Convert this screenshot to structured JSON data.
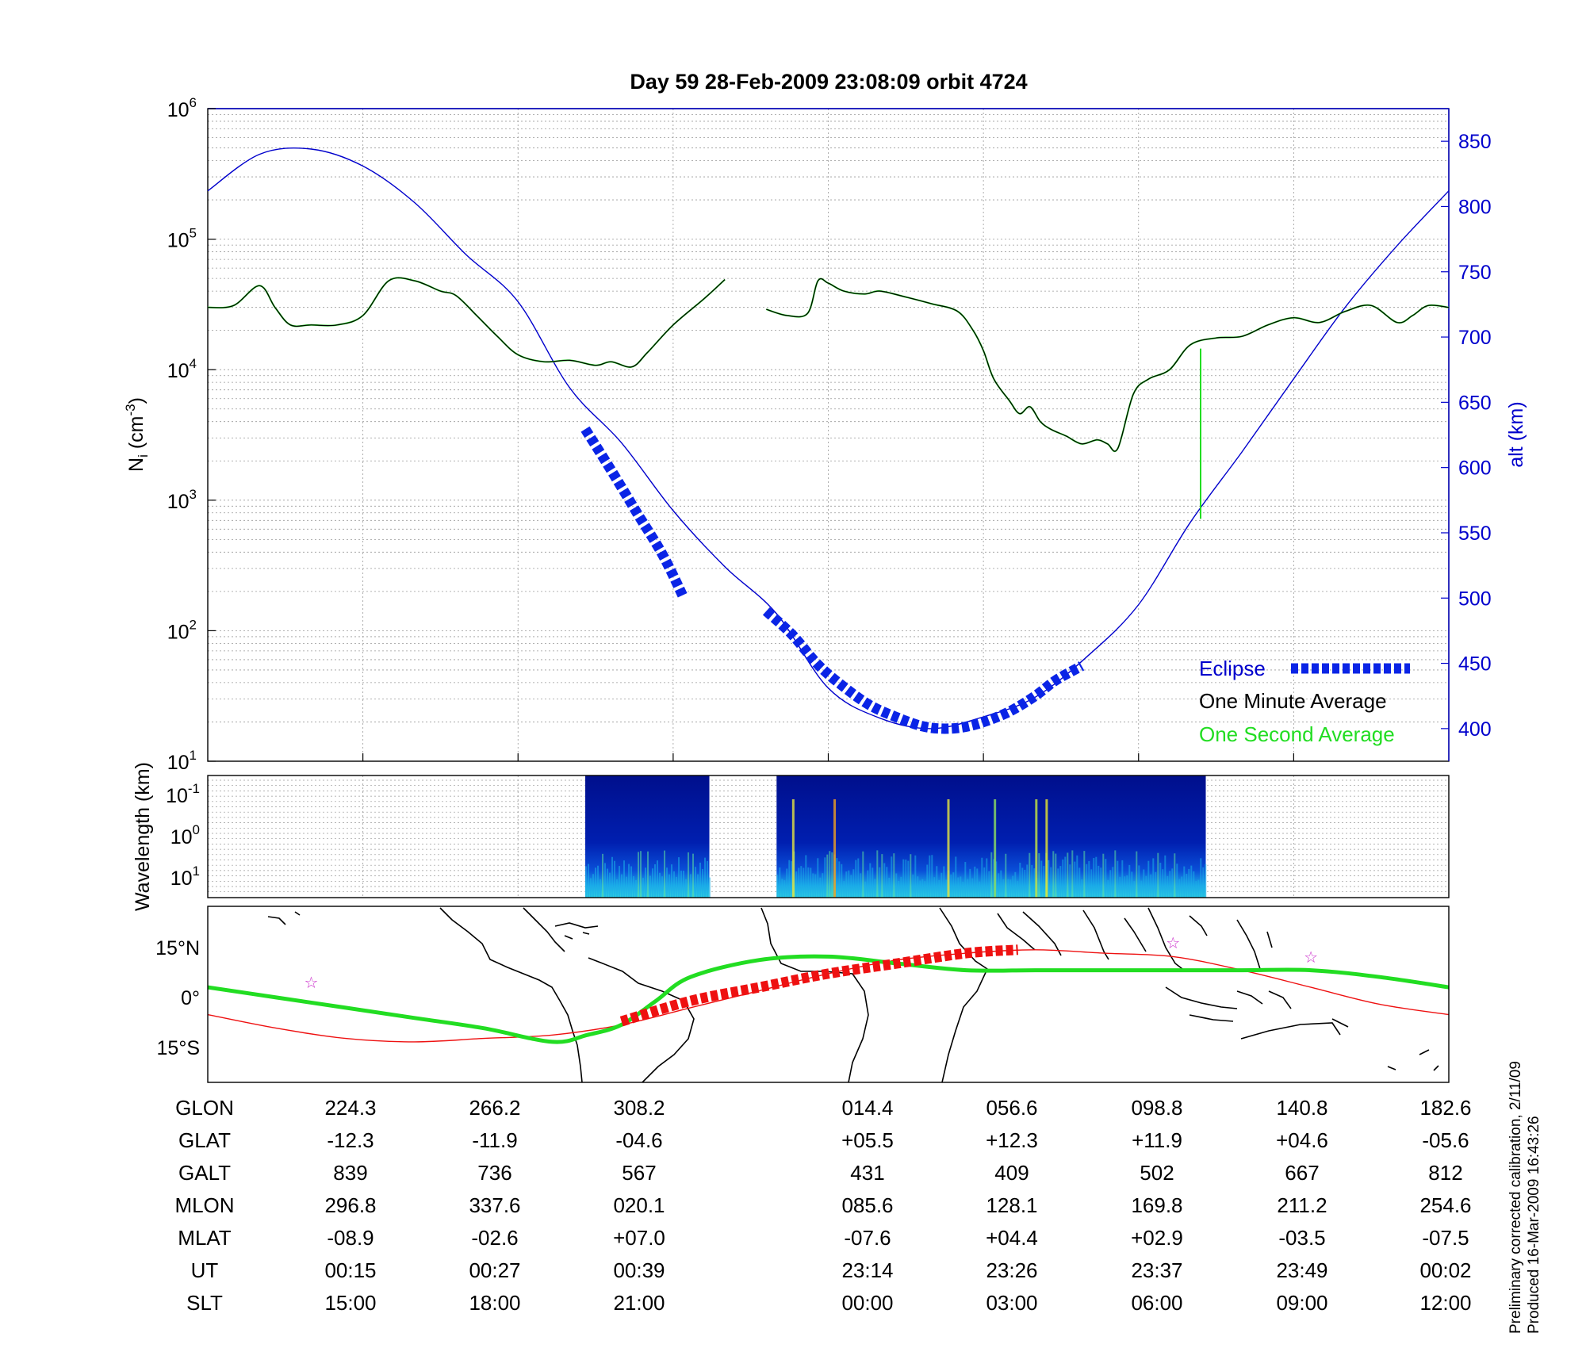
{
  "title": "Day 59  28-Feb-2009 23:08:09   orbit 4724",
  "colors": {
    "altitude": "#0000cc",
    "eclipse": "#0a24e6",
    "one_minute": "#000000",
    "one_second": "#22dd22",
    "track_red": "#ee1111",
    "track_green": "#22dd22",
    "stars": "#cc33cc",
    "grid": "#999999"
  },
  "chart_data": [
    {
      "type": "line",
      "panel": "ion density and altitude",
      "ylabel": "N_i (cm^-3)",
      "ylabel_base": "N",
      "ylabel_sub": "i",
      "ylabel_unit": "(cm",
      "ylabel_exp": "-3",
      "ylabel_close": ")",
      "yscale": "log",
      "ylim": [
        10,
        1000000
      ],
      "y_ticks": [
        {
          "base": "10",
          "exp": "1",
          "value": 10
        },
        {
          "base": "10",
          "exp": "2",
          "value": 100
        },
        {
          "base": "10",
          "exp": "3",
          "value": 1000
        },
        {
          "base": "10",
          "exp": "4",
          "value": 10000
        },
        {
          "base": "10",
          "exp": "5",
          "value": 100000
        },
        {
          "base": "10",
          "exp": "6",
          "value": 1000000
        }
      ],
      "y2label": "alt (km)",
      "y2lim": [
        375,
        875
      ],
      "y2_ticks": [
        "400",
        "450",
        "500",
        "550",
        "600",
        "650",
        "700",
        "750",
        "800",
        "850"
      ],
      "x_range_slt_hours": [
        12,
        36
      ],
      "grid": true,
      "legend": {
        "position": "bottom-right",
        "items": [
          "Eclipse",
          "One Minute Average",
          "One Second Average"
        ]
      },
      "series": [
        {
          "name": "One Minute Average",
          "x_slt": [
            12,
            12.5,
            13.0,
            13.3,
            13.6,
            14.0,
            14.5,
            15.0,
            15.5,
            16.0,
            16.5,
            16.8,
            17.2,
            17.6,
            18.0,
            18.5,
            19.0,
            19.5,
            19.8,
            20.2,
            20.5,
            21.0,
            21.6,
            22.0
          ],
          "y": [
            30000,
            31000,
            44000,
            30000,
            22000,
            22000,
            22000,
            26000,
            48000,
            48000,
            40000,
            37000,
            26000,
            18000,
            13000,
            11500,
            11800,
            10800,
            11500,
            10500,
            13500,
            22000,
            35000,
            49000
          ]
        },
        {
          "name": "One Minute Average",
          "x_slt": [
            22.8,
            23.2,
            23.6,
            23.8,
            24.0,
            24.3,
            24.7,
            25.0,
            25.5,
            26.0,
            26.5,
            26.8,
            27.0,
            27.2,
            27.5,
            27.7,
            27.9,
            28.1,
            28.3,
            28.6,
            28.9,
            29.2,
            29.4,
            29.6,
            29.9,
            30.2,
            30.6,
            31.0,
            31.5,
            32.0,
            32.5,
            33.0,
            33.5,
            34.0,
            34.5,
            35.0,
            35.3,
            35.6,
            36.0
          ],
          "y": [
            29000,
            26000,
            27000,
            48000,
            46000,
            40000,
            38000,
            40000,
            36000,
            32000,
            28000,
            20000,
            14000,
            8500,
            5800,
            4600,
            5200,
            4000,
            3500,
            3100,
            2700,
            2900,
            2700,
            2500,
            6500,
            8500,
            10000,
            15500,
            17500,
            18000,
            22000,
            25000,
            23000,
            28000,
            31000,
            23000,
            26000,
            31000,
            30000
          ]
        },
        {
          "name": "Eclipse",
          "x_slt": [
            19.3,
            19.8,
            20.3,
            20.8,
            21.2
          ],
          "y": [
            3500,
            1700,
            800,
            380,
            180
          ]
        },
        {
          "name": "Eclipse",
          "x_slt": [
            22.8,
            23.3,
            23.8,
            24.3,
            24.8,
            25.3,
            25.8,
            26.2,
            26.6,
            27.0,
            27.5,
            28.0,
            28.4,
            28.9
          ],
          "y_alt_km": [
            490,
            472,
            449,
            432,
            418,
            409,
            402,
            400,
            401,
            405,
            413,
            425,
            437,
            448
          ]
        },
        {
          "name": "altitude",
          "x_slt": [
            12,
            13,
            14,
            15,
            16,
            17,
            18,
            19,
            20,
            21,
            22,
            23,
            24,
            25,
            26,
            27,
            28,
            29,
            30,
            31,
            32,
            33,
            34,
            35,
            36
          ],
          "y_alt_km": [
            812,
            840,
            844,
            831,
            803,
            763,
            727,
            661,
            619,
            567,
            524,
            488,
            431,
            408,
            400,
            409,
            424,
            455,
            495,
            558,
            612,
            668,
            723,
            770,
            812
          ]
        },
        {
          "name": "One Second Average spike",
          "x_slt": [
            31.2,
            31.2
          ],
          "y": [
            14500,
            720
          ]
        }
      ]
    },
    {
      "type": "heatmap",
      "panel": "spectrogram",
      "ylabel": "Wavelength (km)",
      "y_ticks": [
        {
          "base": "10",
          "exp": "-1"
        },
        {
          "base": "10",
          "exp": "0"
        },
        {
          "base": "10",
          "exp": "1"
        }
      ],
      "segments_slt": [
        [
          19.3,
          21.7
        ],
        [
          23.0,
          31.3
        ]
      ]
    },
    {
      "type": "line",
      "panel": "ground track map",
      "y_ticks": [
        "15°N",
        "0°",
        "15°S"
      ],
      "series": [
        {
          "name": "green track",
          "lon": [
            -180,
            -160,
            -140,
            -120,
            -100,
            -80,
            -70,
            -60,
            -50,
            -40,
            -20,
            0,
            20,
            40,
            60,
            80,
            100,
            120,
            140,
            160,
            180
          ],
          "lat": [
            3,
            0,
            -3,
            -6,
            -9,
            -13,
            -11,
            -8,
            -1,
            6,
            11,
            12,
            10,
            8,
            8,
            8,
            8,
            8,
            8,
            6,
            3
          ]
        },
        {
          "name": "red track",
          "lon": [
            -180,
            -160,
            -140,
            -120,
            -100,
            -80,
            -60,
            -40,
            -20,
            0,
            20,
            40,
            60,
            80,
            100,
            120,
            140,
            160,
            180
          ],
          "lat": [
            -5,
            -9,
            -12,
            -13,
            -12,
            -11,
            -8,
            -3,
            2,
            7,
            11,
            13,
            14,
            13,
            12,
            8,
            3,
            -2,
            -5
          ]
        },
        {
          "name": "red eclipse",
          "lon": [
            -60,
            -40,
            -20,
            0,
            20,
            40,
            55
          ],
          "lat": [
            -7,
            -1,
            3,
            7,
            10,
            13,
            14
          ]
        }
      ]
    }
  ],
  "orbit_table": {
    "labels": [
      "GLON",
      "GLAT",
      "GALT",
      "MLON",
      "MLAT",
      "UT",
      "SLT"
    ],
    "columns": [
      [
        "224.3",
        "-12.3",
        "839",
        "296.8",
        "-08.9",
        "00:15",
        "15:00"
      ],
      [
        "266.2",
        "-11.9",
        "736",
        "337.6",
        "-02.6",
        "00:27",
        "18:00"
      ],
      [
        "308.2",
        "-04.6",
        "567",
        "020.1",
        "+07.0",
        "00:39",
        "21:00"
      ],
      [
        "014.4",
        "+05.5",
        "431",
        "085.6",
        "-07.6",
        "23:14",
        "00:00"
      ],
      [
        "056.6",
        "+12.3",
        "409",
        "128.1",
        "+04.4",
        "23:26",
        "03:00"
      ],
      [
        "098.8",
        "+11.9",
        "502",
        "169.8",
        "+02.9",
        "23:37",
        "06:00"
      ],
      [
        "140.8",
        "+04.6",
        "667",
        "211.2",
        "-03.5",
        "23:49",
        "09:00"
      ],
      [
        "182.6",
        "-05.6",
        "812",
        "254.6",
        "-07.5",
        "00:02",
        "12:00"
      ]
    ]
  },
  "notes": {
    "line1": "Preliminary corrected calibration, 2/11/09",
    "line2": "Produced 16-Mar-2009 16:43:26"
  }
}
